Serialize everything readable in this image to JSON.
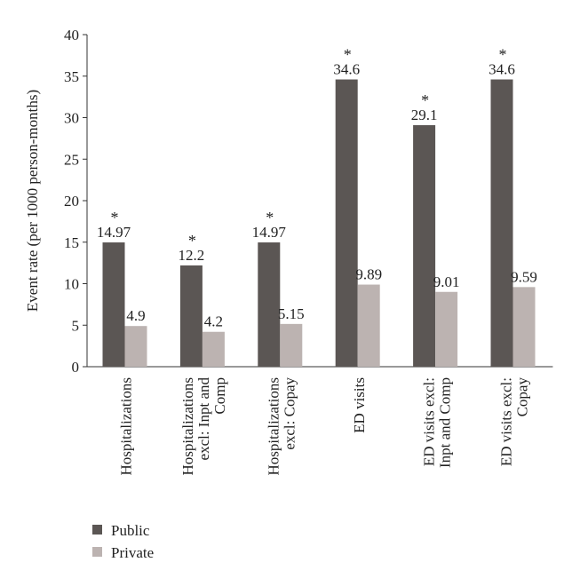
{
  "chart_data": {
    "type": "bar",
    "title": "",
    "xlabel": "",
    "ylabel": "Event rate (per 1000 person-months)",
    "ylim": [
      0,
      40
    ],
    "yticks": [
      0,
      5,
      10,
      15,
      20,
      25,
      30,
      35,
      40
    ],
    "grid": false,
    "legend_position": "bottom-left",
    "categories": [
      [
        "Hospitalizations"
      ],
      [
        "Hospitalizations",
        "excl: Inpt and",
        "Comp"
      ],
      [
        "Hospitalizations",
        "excl: Copay"
      ],
      [
        "ED visits"
      ],
      [
        "ED visits excl:",
        "Inpt and Comp"
      ],
      [
        "ED visits excl:",
        "Copay"
      ]
    ],
    "series": [
      {
        "name": "Public",
        "color": "#5b5654",
        "values": [
          14.97,
          12.2,
          14.97,
          34.6,
          29.1,
          34.6
        ],
        "labels": [
          "14.97",
          "12.2",
          "14.97",
          "34.6",
          "29.1",
          "34.6"
        ],
        "significant": [
          true,
          true,
          true,
          true,
          true,
          true
        ]
      },
      {
        "name": "Private",
        "color": "#bcb3b1",
        "values": [
          4.9,
          4.2,
          5.15,
          9.89,
          9.01,
          9.59
        ],
        "labels": [
          "4.9",
          "4.2",
          "5.15",
          "9.89",
          "9.01",
          "9.59"
        ],
        "significant": [
          false,
          false,
          false,
          false,
          false,
          false
        ]
      }
    ],
    "significance_marker": "*"
  }
}
